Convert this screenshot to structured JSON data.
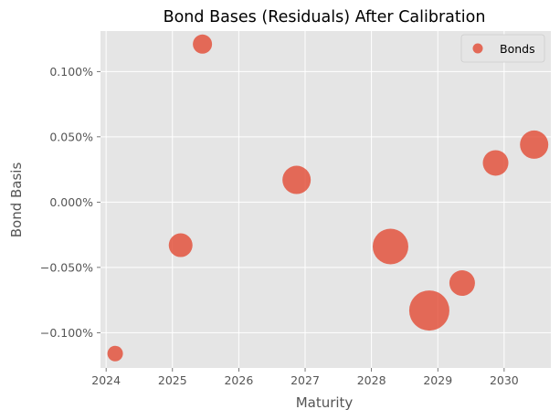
{
  "chart_data": {
    "type": "scatter",
    "title": "Bond Bases (Residuals) After Calibration",
    "xlabel": "Maturity",
    "ylabel": "Bond Basis",
    "x_ticks": [
      "2024",
      "2025",
      "2026",
      "2027",
      "2028",
      "2029",
      "2030"
    ],
    "y_ticks": [
      "−0.100%",
      "−0.050%",
      "0.000%",
      "0.050%",
      "0.100%"
    ],
    "xlim": [
      "2023-12-01",
      "2030-09-15"
    ],
    "ylim": [
      -0.00127,
      0.00131
    ],
    "grid": true,
    "legend": {
      "position": "top-right",
      "label": "Bonds"
    },
    "series": [
      {
        "name": "Bonds",
        "color": "#e24a33",
        "points": [
          {
            "x": "2024-02-20",
            "y": -0.00116,
            "size": 17
          },
          {
            "x": "2025-02-15",
            "y": -0.00033,
            "size": 26
          },
          {
            "x": "2025-06-15",
            "y": 0.00121,
            "size": 21
          },
          {
            "x": "2026-11-15",
            "y": 0.00017,
            "size": 31
          },
          {
            "x": "2028-04-15",
            "y": -0.00034,
            "size": 39
          },
          {
            "x": "2028-11-15",
            "y": -0.00083,
            "size": 44
          },
          {
            "x": "2029-05-15",
            "y": -0.00062,
            "size": 28
          },
          {
            "x": "2029-11-15",
            "y": 0.0003,
            "size": 28
          },
          {
            "x": "2030-06-15",
            "y": 0.00044,
            "size": 31
          }
        ]
      }
    ]
  }
}
